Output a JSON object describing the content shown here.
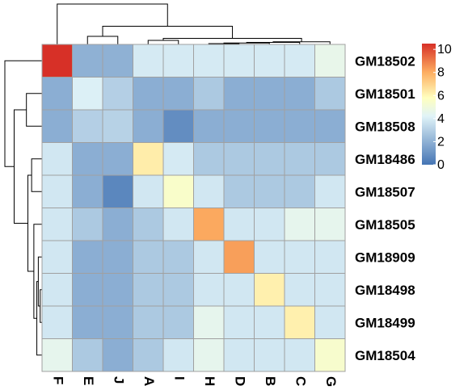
{
  "chart_data": {
    "type": "heatmap",
    "title": "",
    "columns": [
      "F",
      "E",
      "J",
      "A",
      "I",
      "H",
      "D",
      "B",
      "C",
      "G"
    ],
    "rows": [
      "GM18502",
      "GM18501",
      "GM18508",
      "GM18486",
      "GM18507",
      "GM18505",
      "GM18909",
      "GM18498",
      "GM18499",
      "GM18504"
    ],
    "values": [
      [
        10.5,
        2.0,
        2.0,
        3.9,
        3.9,
        3.9,
        3.9,
        3.9,
        3.9,
        4.6
      ],
      [
        1.9,
        4.1,
        3.0,
        1.9,
        1.9,
        2.8,
        1.9,
        1.9,
        1.9,
        2.8
      ],
      [
        1.9,
        3.0,
        3.1,
        1.9,
        0.8,
        1.9,
        1.9,
        1.9,
        1.9,
        1.9
      ],
      [
        3.8,
        1.9,
        1.9,
        6.3,
        3.9,
        2.8,
        2.8,
        2.8,
        2.8,
        2.8
      ],
      [
        3.8,
        1.9,
        0.6,
        3.8,
        5.5,
        3.8,
        2.8,
        2.8,
        2.8,
        3.8
      ],
      [
        3.8,
        2.8,
        1.9,
        2.8,
        3.8,
        8.1,
        3.8,
        3.8,
        4.5,
        4.5
      ],
      [
        3.8,
        1.9,
        1.9,
        2.8,
        2.8,
        3.8,
        8.3,
        3.8,
        3.8,
        3.8
      ],
      [
        3.8,
        1.9,
        1.9,
        2.8,
        2.8,
        3.8,
        3.8,
        6.2,
        3.8,
        3.8
      ],
      [
        3.8,
        1.9,
        1.9,
        2.8,
        2.8,
        4.5,
        3.8,
        3.8,
        6.2,
        3.8
      ],
      [
        4.5,
        2.8,
        1.9,
        2.8,
        3.8,
        4.5,
        3.8,
        3.8,
        3.8,
        5.4
      ]
    ],
    "color_scale": {
      "min": 0,
      "max": 10.5,
      "stops": [
        {
          "value": 0,
          "color": "#4575b4"
        },
        {
          "value": 4.2,
          "color": "#e0f3f8"
        },
        {
          "value": 5.8,
          "color": "#ffffbf"
        },
        {
          "value": 8.0,
          "color": "#fdae61"
        },
        {
          "value": 10.5,
          "color": "#d73027"
        }
      ]
    },
    "legend": {
      "position": "right",
      "ticks": [
        0,
        2,
        4,
        6,
        8,
        10
      ],
      "tick_labels": [
        "0",
        "2",
        "4",
        "6",
        "8",
        "10"
      ]
    },
    "column_dendrogram": {
      "merges": [
        [
          -6,
          -7
        ],
        [
          -8,
          1
        ],
        [
          -9,
          2
        ],
        [
          -10,
          3
        ],
        [
          -4,
          -5
        ],
        [
          5,
          4
        ],
        [
          -2,
          -3
        ],
        [
          7,
          6
        ],
        [
          -1,
          8
        ]
      ],
      "heights": [
        2.0,
        3.5,
        5.0,
        6.5,
        10.0,
        15.0,
        20.0,
        45.0,
        100.0
      ]
    },
    "row_dendrogram": {
      "merges": [
        [
          -8,
          -9
        ],
        [
          -7,
          1
        ],
        [
          -10,
          2
        ],
        [
          -6,
          3
        ],
        [
          -4,
          -5
        ],
        [
          5,
          4
        ],
        [
          -2,
          -3
        ],
        [
          7,
          6
        ],
        [
          -1,
          8
        ]
      ],
      "heights": [
        5.0,
        10.0,
        14.0,
        22.0,
        28.0,
        38.0,
        42.0,
        75.0,
        100.0
      ]
    },
    "dendrogram_colors": {
      "line": "#000000",
      "grid": "#a0a0a0"
    }
  }
}
